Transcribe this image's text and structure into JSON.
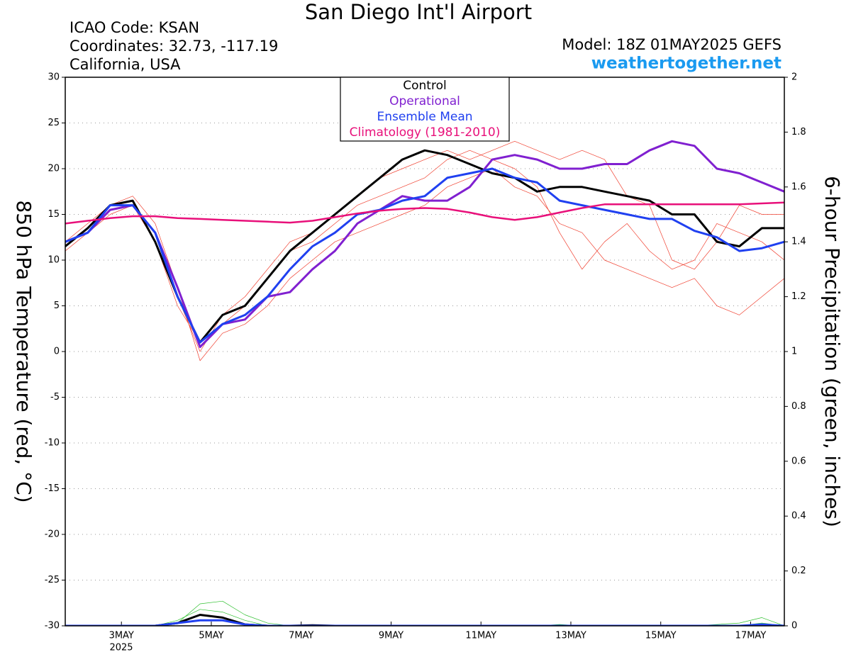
{
  "chart_data": {
    "type": "line",
    "title": "San Diego Int'l Airport",
    "info_lines": [
      "ICAO Code: KSAN",
      "Coordinates: 32.73, -117.19",
      "California, USA"
    ],
    "model": "Model: 18Z 01MAY2025 GEFS",
    "source": "weathertogether.net",
    "y_label": "850 hPa Temperature (red, °C)",
    "y2_label": "6-hour Precipitation (green, inches)",
    "x_year_label": "2025",
    "x": [
      1.75,
      2.25,
      2.75,
      3.25,
      3.75,
      4.25,
      4.75,
      5.25,
      5.75,
      6.25,
      6.75,
      7.25,
      7.75,
      8.25,
      8.75,
      9.25,
      9.75,
      10.25,
      10.75,
      11.25,
      11.75,
      12.25,
      12.75,
      13.25,
      13.75,
      14.25,
      14.75,
      15.25,
      15.75,
      16.25,
      16.75,
      17.25,
      17.75
    ],
    "xlim": [
      1.75,
      17.75
    ],
    "xticks": [
      {
        "value": 3,
        "label": "3MAY"
      },
      {
        "value": 5,
        "label": "5MAY"
      },
      {
        "value": 7,
        "label": "7MAY"
      },
      {
        "value": 9,
        "label": "9MAY"
      },
      {
        "value": 11,
        "label": "11MAY"
      },
      {
        "value": 13,
        "label": "13MAY"
      },
      {
        "value": 15,
        "label": "15MAY"
      },
      {
        "value": 17,
        "label": "17MAY"
      }
    ],
    "ylim": [
      -30,
      30
    ],
    "yticks": [
      -30,
      -25,
      -20,
      -15,
      -10,
      -5,
      0,
      5,
      10,
      15,
      20,
      25,
      30
    ],
    "y2lim": [
      0,
      2
    ],
    "y2ticks": [
      0,
      0.2,
      0.4,
      0.6,
      0.8,
      1,
      1.2,
      1.4,
      1.6,
      1.8,
      2
    ],
    "grid": true,
    "legend": "top",
    "series": [
      {
        "color": "#f04030",
        "width": 0.7,
        "values": [
          11,
          13,
          16,
          17,
          14,
          7,
          -1,
          2,
          3,
          5,
          8,
          10,
          12,
          13,
          14,
          15,
          16,
          18,
          19,
          20,
          18,
          17,
          14,
          13,
          10,
          9,
          8,
          7,
          8,
          5,
          4,
          6,
          8
        ]
      },
      {
        "color": "#f04030",
        "width": 0.7,
        "values": [
          12,
          13,
          15,
          16,
          12,
          5,
          1,
          3,
          5,
          8,
          11,
          12,
          14,
          16,
          17,
          18,
          19,
          21,
          22,
          21,
          20,
          18,
          13,
          9,
          12,
          14,
          11,
          9,
          10,
          14,
          13,
          12,
          10
        ]
      },
      {
        "color": "#f04030",
        "width": 0.7,
        "values": [
          12,
          14,
          16,
          16,
          13,
          6,
          0,
          4,
          6,
          9,
          12,
          13,
          15,
          17,
          19,
          20,
          21,
          22,
          21,
          22,
          23,
          22,
          21,
          22,
          21,
          17,
          16,
          10,
          9,
          12,
          16,
          15,
          15
        ]
      },
      {
        "color": "#30c030",
        "width": 0.7,
        "axis": "y2",
        "values": [
          0,
          0,
          0,
          0,
          0,
          0.01,
          0.08,
          0.09,
          0.04,
          0.01,
          0,
          0,
          0,
          0,
          0,
          0,
          0,
          0,
          0,
          0,
          0,
          0,
          0,
          0,
          0,
          0,
          0,
          0,
          0,
          0,
          0,
          0.01,
          0
        ]
      },
      {
        "color": "#30c030",
        "width": 0.7,
        "axis": "y2",
        "values": [
          0,
          0,
          0,
          0,
          0,
          0.02,
          0.06,
          0.05,
          0.02,
          0,
          0,
          0,
          0,
          0,
          0,
          0,
          0,
          0,
          0,
          0,
          0,
          0,
          0.005,
          0,
          0,
          0,
          0,
          0,
          0,
          0.005,
          0.01,
          0.03,
          0
        ]
      },
      {
        "name": "Control",
        "color": "#000000",
        "width": 3,
        "values": [
          11.5,
          13.5,
          16,
          16.5,
          12,
          6,
          1,
          4,
          5,
          8,
          11,
          13,
          15,
          17,
          19,
          21,
          22,
          21.5,
          20.5,
          19.5,
          19,
          17.5,
          18,
          18,
          17.5,
          17,
          16.5,
          15,
          15,
          12,
          11.5,
          13.5,
          13.5
        ]
      },
      {
        "name": "Operational",
        "color": "#8020d0",
        "width": 3,
        "values": [
          12,
          13,
          15.5,
          16,
          13,
          7,
          0.5,
          3,
          3.5,
          6,
          6.5,
          9,
          11,
          14,
          15.5,
          17,
          16.5,
          16.5,
          18,
          21,
          21.5,
          21,
          20,
          20,
          20.5,
          20.5,
          22,
          23,
          22.5,
          20,
          19.5,
          18.5,
          17.5
        ]
      },
      {
        "name": "Ensemble Mean",
        "color": "#2040f0",
        "width": 3,
        "values": [
          12,
          13,
          16,
          16,
          13,
          6,
          1,
          3,
          4,
          6,
          9,
          11.5,
          13,
          15,
          15.5,
          16.5,
          17,
          19,
          19.5,
          20,
          19,
          18.5,
          16.5,
          16,
          15.5,
          15,
          14.5,
          14.5,
          13.2,
          12.5,
          11,
          11.3,
          12
        ]
      },
      {
        "name": "Climatology (1981-2010)",
        "color": "#e8107a",
        "width": 2.5,
        "values": [
          14,
          14.3,
          14.6,
          14.8,
          14.8,
          14.6,
          14.5,
          14.4,
          14.3,
          14.2,
          14.1,
          14.3,
          14.7,
          15.1,
          15.4,
          15.6,
          15.7,
          15.6,
          15.2,
          14.7,
          14.4,
          14.7,
          15.2,
          15.7,
          16.1,
          16.1,
          16.1,
          16.1,
          16.1,
          16.1,
          16.1,
          16.2,
          16.3
        ]
      },
      {
        "color": "#000000",
        "width": 3,
        "axis": "y2",
        "values": [
          0,
          0,
          0,
          0,
          0,
          0.01,
          0.04,
          0.03,
          0.005,
          0,
          0,
          0.002,
          0,
          0,
          0,
          0,
          0,
          0,
          0,
          0,
          0,
          0,
          0,
          0,
          0,
          0,
          0,
          0,
          0,
          0,
          0,
          0,
          0
        ]
      },
      {
        "color": "#2040f0",
        "width": 3,
        "axis": "y2",
        "values": [
          0,
          0,
          0,
          0,
          0,
          0.01,
          0.02,
          0.02,
          0.005,
          0,
          0,
          0,
          0,
          0,
          0,
          0,
          0,
          0,
          0,
          0,
          0,
          0,
          0,
          0,
          0,
          0,
          0,
          0,
          0,
          0,
          0,
          0.005,
          0
        ]
      }
    ]
  }
}
